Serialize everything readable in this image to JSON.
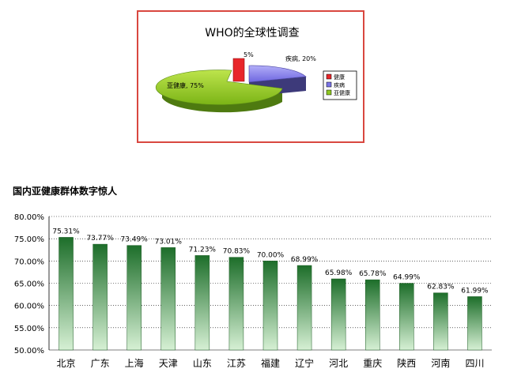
{
  "chart_data": [
    {
      "type": "pie",
      "title": "WHO的全球性调查",
      "slices": [
        {
          "name": "健康",
          "value": 5,
          "label": "5%",
          "color": "#e8262a"
        },
        {
          "name": "疾病",
          "value": 20,
          "label": "疾病, 20%",
          "color": "#7b74e8"
        },
        {
          "name": "亚健康",
          "value": 75,
          "label": "亚健康, 75%",
          "color": "#8ec820"
        }
      ],
      "legend": {
        "position": "right",
        "entries": [
          "健康",
          "疾病",
          "亚健康"
        ]
      }
    },
    {
      "type": "bar",
      "title": "国内亚健康群体数字惊人",
      "categories": [
        "北京",
        "广东",
        "上海",
        "天津",
        "山东",
        "江苏",
        "福建",
        "辽宁",
        "河北",
        "重庆",
        "陕西",
        "河南",
        "四川"
      ],
      "values": [
        75.31,
        73.77,
        73.49,
        73.01,
        71.23,
        70.83,
        70.0,
        68.99,
        65.98,
        65.78,
        64.99,
        62.83,
        61.99
      ],
      "data_labels": [
        "75.31%",
        "73.77%",
        "73.49%",
        "73.01%",
        "71.23%",
        "70.83%",
        "70.00%",
        "68.99%",
        "65.98%",
        "65.78%",
        "64.99%",
        "62.83%",
        "61.99%"
      ],
      "ylim": [
        50,
        80
      ],
      "yticks": [
        "50.00%",
        "55.00%",
        "60.00%",
        "65.00%",
        "70.00%",
        "75.00%",
        "80.00%"
      ],
      "grid": true,
      "bar_color_top": "#1d6e2a",
      "bar_color_bottom": "#d6f0d4"
    }
  ]
}
